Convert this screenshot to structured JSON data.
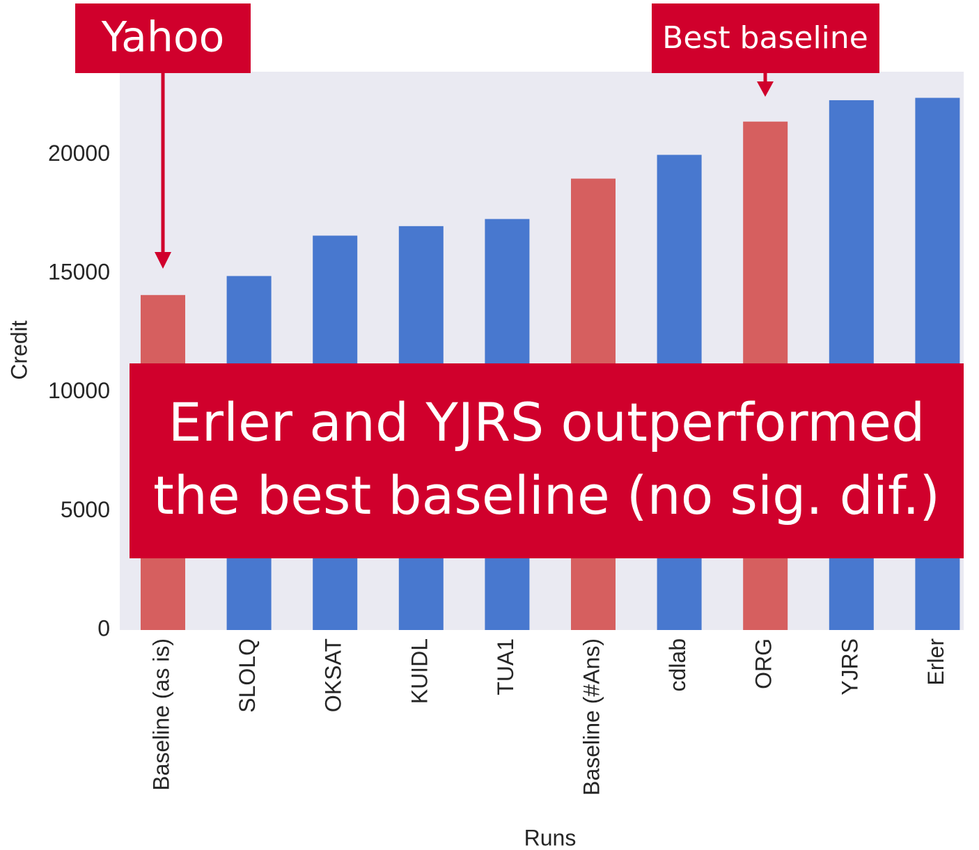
{
  "chart_data": {
    "type": "bar",
    "xlabel": "Runs",
    "ylabel": "Credit",
    "categories": [
      "Baseline (as is)",
      "SLOLQ",
      "OKSAT",
      "KUIDL",
      "TUA1",
      "Baseline (#Ans)",
      "cdlab",
      "ORG",
      "YJRS",
      "Erler"
    ],
    "values": [
      14100,
      14900,
      16600,
      17000,
      17300,
      19000,
      20000,
      21400,
      22300,
      22400
    ],
    "colors": [
      "#d65f5f",
      "#4878cf",
      "#4878cf",
      "#4878cf",
      "#4878cf",
      "#d65f5f",
      "#4878cf",
      "#d65f5f",
      "#4878cf",
      "#4878cf"
    ],
    "ylim": [
      0,
      23500
    ],
    "yticks": [
      0,
      5000,
      10000,
      15000,
      20000
    ],
    "grid": false,
    "annotations": {
      "left": "Yahoo",
      "right": "Best baseline",
      "callout": [
        "Erler and YJRS outperformed",
        "the best baseline (no sig. dif.)"
      ]
    }
  }
}
